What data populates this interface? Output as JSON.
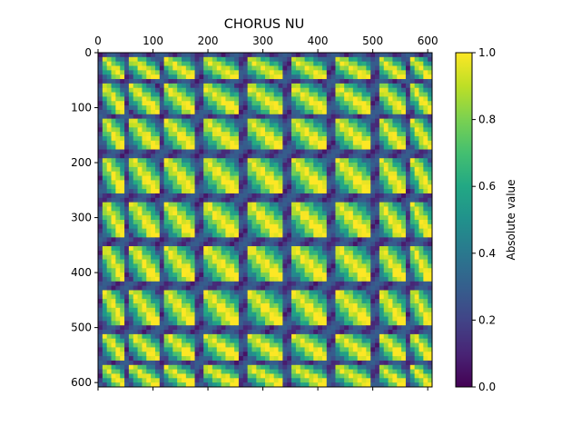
{
  "chart_data": {
    "type": "heatmap",
    "title": "CHORUS NU",
    "xlabel": "",
    "ylabel": "",
    "xlim": [
      0,
      608
    ],
    "ylim": [
      608,
      0
    ],
    "xticks": [
      0,
      100,
      200,
      300,
      400,
      500,
      600
    ],
    "yticks": [
      0,
      100,
      200,
      300,
      400,
      500,
      600
    ],
    "xtick_position": "top",
    "colormap": "viridis",
    "colorbar": {
      "label": "Absolute value",
      "min": 0.0,
      "max": 1.0,
      "ticks": [
        "0.0",
        "0.2",
        "0.4",
        "0.6",
        "0.8",
        "1.0"
      ]
    },
    "matrix_size": 608,
    "block_boundaries": [
      0,
      10,
      50,
      60,
      110,
      120,
      180,
      190,
      260,
      270,
      340,
      350,
      420,
      430,
      500,
      510,
      560,
      570,
      608
    ],
    "description_of_values": "correlation matrix with bright diagonal bands within each block and dark rows/columns at block edges"
  }
}
